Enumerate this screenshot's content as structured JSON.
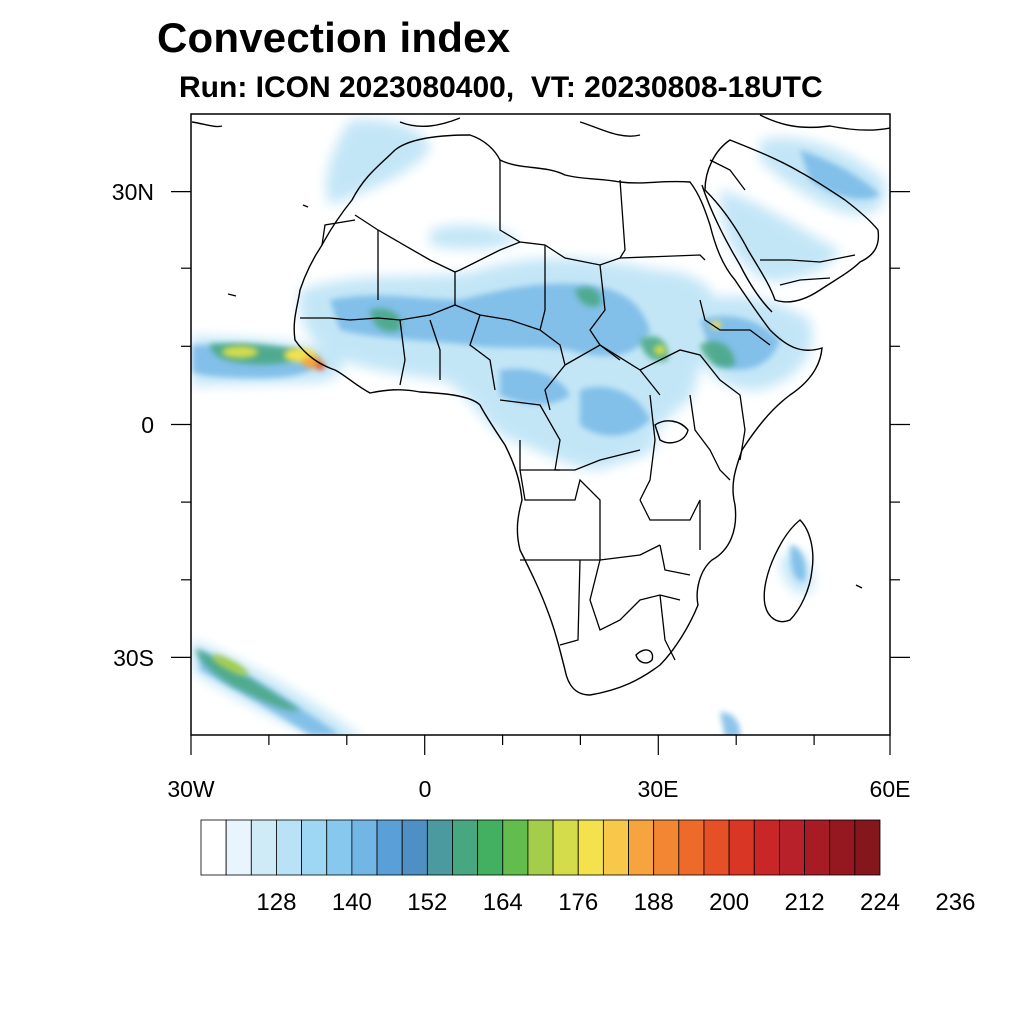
{
  "title": "Convection index",
  "subtitle": "Run: ICON 2023080400,  VT: 20230808-18UTC",
  "axes": {
    "lon_labels": [
      "30W",
      "0",
      "30E",
      "60E"
    ],
    "lat_labels": [
      "30N",
      "0",
      "30S"
    ]
  },
  "colorbar": {
    "labels": [
      "128",
      "140",
      "152",
      "164",
      "176",
      "188",
      "200",
      "212",
      "224",
      "236"
    ],
    "colors": [
      "#ffffff",
      "#e8f5fc",
      "#cfebf8",
      "#b9e2f6",
      "#9ed7f4",
      "#87c9ee",
      "#72b6e6",
      "#5b9fd8",
      "#4e8fc4",
      "#4a9aa0",
      "#46a780",
      "#42b060",
      "#62bd4e",
      "#a3cd4a",
      "#d4dc4c",
      "#f3e24e",
      "#f8c84a",
      "#f6a43e",
      "#f38632",
      "#ee6a2a",
      "#e55026",
      "#da3626",
      "#c92628",
      "#b8202a",
      "#a61b24",
      "#951820",
      "#84161c"
    ]
  },
  "map": {
    "projection": "cylindrical equidistant",
    "lon_range": [
      -30,
      60
    ],
    "lat_range": [
      -40,
      40
    ],
    "region": "Africa",
    "field": "Convection index"
  }
}
